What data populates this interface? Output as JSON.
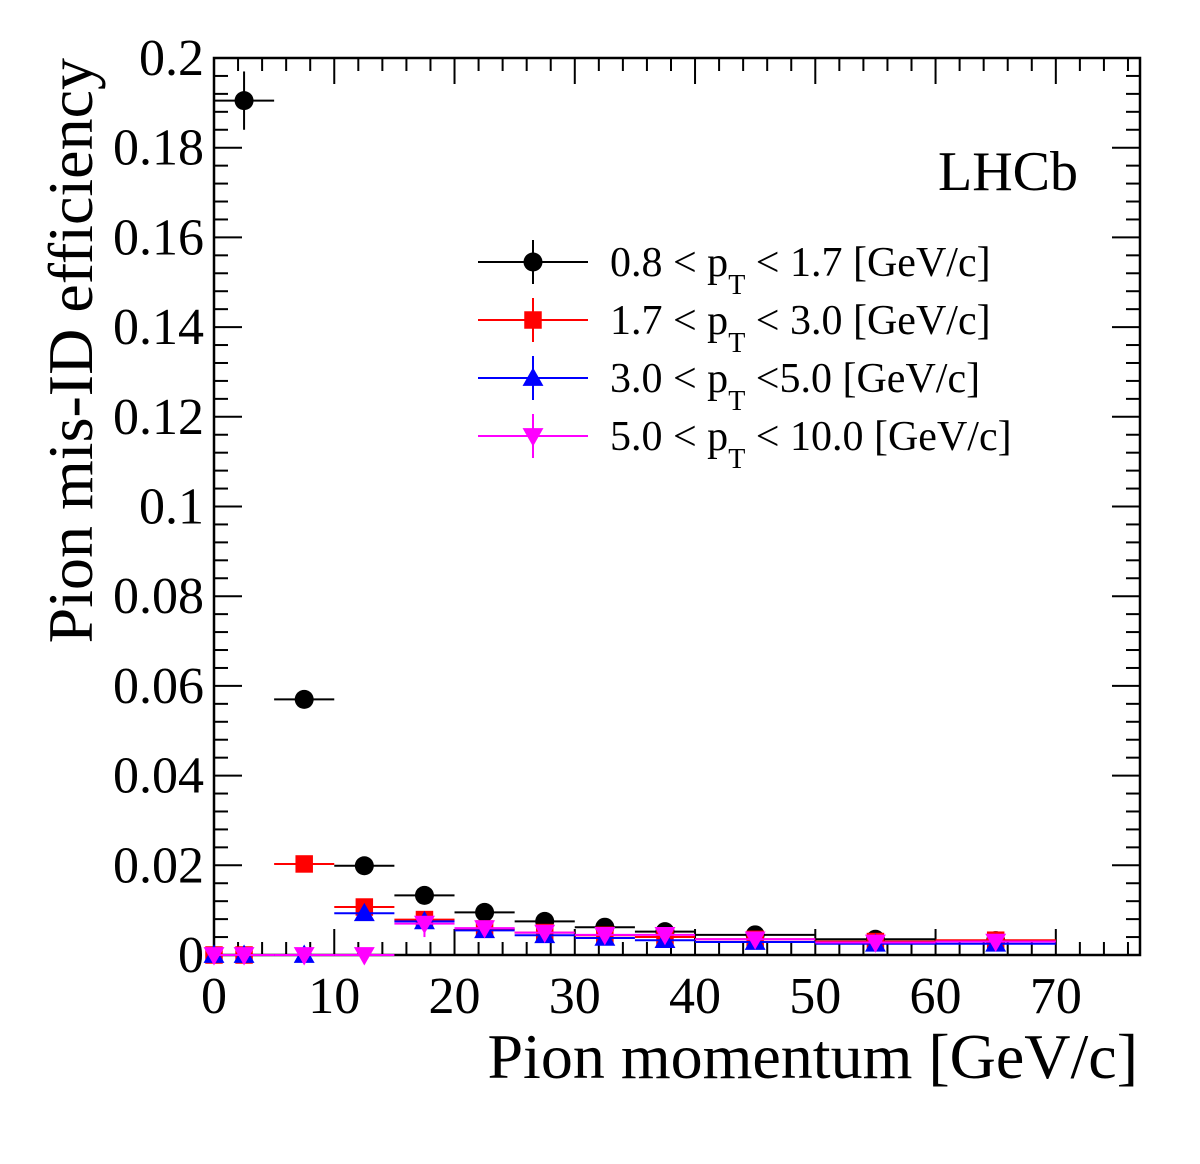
{
  "chart_data": {
    "type": "scatter",
    "xlabel": "Pion momentum [GeV/c]",
    "ylabel": "Pion mis-ID efficiency",
    "xlim": [
      0,
      77
    ],
    "ylim": [
      0,
      0.2
    ],
    "x_ticks": [
      0,
      10,
      20,
      30,
      40,
      50,
      60,
      70
    ],
    "x_tick_labels": [
      "0",
      "10",
      "20",
      "30",
      "40",
      "50",
      "60",
      "70"
    ],
    "y_ticks": [
      0,
      0.02,
      0.04,
      0.06,
      0.08,
      0.1,
      0.12,
      0.14,
      0.16,
      0.18,
      0.2
    ],
    "y_tick_labels": [
      "0",
      "0.02",
      "0.04",
      "0.06",
      "0.08",
      "0.1",
      "0.12",
      "0.14",
      "0.16",
      "0.18",
      "0.2"
    ],
    "annotation": "LHCb",
    "legend_position": "top-right",
    "series": [
      {
        "name": "0.8 < pT < 1.7 [GeV/c]",
        "legend_main": "0.8 < p",
        "legend_sub": "T",
        "legend_tail": " < 1.7 [GeV/c]",
        "color": "#000000",
        "marker": "circle",
        "points": [
          {
            "x": 2.5,
            "xlo": 0,
            "xhi": 5,
            "y": 0.1905,
            "ylo": 0.184,
            "yhi": 0.197
          },
          {
            "x": 7.5,
            "xlo": 5,
            "xhi": 10,
            "y": 0.057,
            "ylo": 0.0565,
            "yhi": 0.0575
          },
          {
            "x": 12.5,
            "xlo": 10,
            "xhi": 15,
            "y": 0.0199,
            "ylo": 0.0195,
            "yhi": 0.0203
          },
          {
            "x": 17.5,
            "xlo": 15,
            "xhi": 20,
            "y": 0.0133,
            "ylo": 0.0129,
            "yhi": 0.0137
          },
          {
            "x": 22.5,
            "xlo": 20,
            "xhi": 25,
            "y": 0.0095,
            "ylo": 0.0091,
            "yhi": 0.0099
          },
          {
            "x": 27.5,
            "xlo": 25,
            "xhi": 30,
            "y": 0.0075,
            "ylo": 0.0071,
            "yhi": 0.0079
          },
          {
            "x": 32.5,
            "xlo": 30,
            "xhi": 35,
            "y": 0.0062,
            "ylo": 0.0058,
            "yhi": 0.0066
          },
          {
            "x": 37.5,
            "xlo": 35,
            "xhi": 40,
            "y": 0.0052,
            "ylo": 0.0048,
            "yhi": 0.0056
          },
          {
            "x": 45,
            "xlo": 40,
            "xhi": 50,
            "y": 0.0045,
            "ylo": 0.0041,
            "yhi": 0.0049
          },
          {
            "x": 55,
            "xlo": 50,
            "xhi": 60,
            "y": 0.0035,
            "ylo": 0.0031,
            "yhi": 0.0039
          },
          {
            "x": 65,
            "xlo": 60,
            "xhi": 70,
            "y": 0.0032,
            "ylo": 0.0028,
            "yhi": 0.0036
          }
        ]
      },
      {
        "name": "1.7 < pT < 3.0 [GeV/c]",
        "legend_main": "1.7 < p",
        "legend_sub": "T",
        "legend_tail": " < 3.0 [GeV/c]",
        "color": "#ff0000",
        "marker": "square",
        "points": [
          {
            "x": 0,
            "xlo": 0,
            "xhi": 0,
            "y": 0,
            "ylo": 0,
            "yhi": 0
          },
          {
            "x": 2.5,
            "xlo": 0,
            "xhi": 5,
            "y": 0,
            "ylo": 0,
            "yhi": 0
          },
          {
            "x": 7.5,
            "xlo": 5,
            "xhi": 10,
            "y": 0.0203,
            "ylo": 0.0199,
            "yhi": 0.0207
          },
          {
            "x": 12.5,
            "xlo": 10,
            "xhi": 15,
            "y": 0.0107,
            "ylo": 0.0103,
            "yhi": 0.0111
          },
          {
            "x": 17.5,
            "xlo": 15,
            "xhi": 20,
            "y": 0.0079,
            "ylo": 0.0075,
            "yhi": 0.0083
          },
          {
            "x": 22.5,
            "xlo": 20,
            "xhi": 25,
            "y": 0.0058,
            "ylo": 0.0054,
            "yhi": 0.0062
          },
          {
            "x": 27.5,
            "xlo": 25,
            "xhi": 30,
            "y": 0.005,
            "ylo": 0.0046,
            "yhi": 0.0054
          },
          {
            "x": 32.5,
            "xlo": 30,
            "xhi": 35,
            "y": 0.0044,
            "ylo": 0.004,
            "yhi": 0.0048
          },
          {
            "x": 37.5,
            "xlo": 35,
            "xhi": 40,
            "y": 0.004,
            "ylo": 0.0036,
            "yhi": 0.0044
          },
          {
            "x": 45,
            "xlo": 40,
            "xhi": 50,
            "y": 0.0035,
            "ylo": 0.0031,
            "yhi": 0.0039
          },
          {
            "x": 55,
            "xlo": 50,
            "xhi": 60,
            "y": 0.003,
            "ylo": 0.0026,
            "yhi": 0.0034
          },
          {
            "x": 65,
            "xlo": 60,
            "xhi": 70,
            "y": 0.0033,
            "ylo": 0.0029,
            "yhi": 0.0037
          }
        ]
      },
      {
        "name": "3.0 < pT <5.0 [GeV/c]",
        "legend_main": "3.0 < p",
        "legend_sub": "T",
        "legend_tail": " <5.0 [GeV/c]",
        "color": "#0000ff",
        "marker": "triangle-up",
        "points": [
          {
            "x": 0,
            "xlo": 0,
            "xhi": 0,
            "y": 0,
            "ylo": 0,
            "yhi": 0
          },
          {
            "x": 2.5,
            "xlo": 0,
            "xhi": 5,
            "y": 0,
            "ylo": 0,
            "yhi": 0
          },
          {
            "x": 7.5,
            "xlo": 5,
            "xhi": 10,
            "y": 0,
            "ylo": 0,
            "yhi": 0
          },
          {
            "x": 12.5,
            "xlo": 10,
            "xhi": 15,
            "y": 0.0093,
            "ylo": 0.0087,
            "yhi": 0.0099
          },
          {
            "x": 17.5,
            "xlo": 15,
            "xhi": 20,
            "y": 0.0075,
            "ylo": 0.0071,
            "yhi": 0.0079
          },
          {
            "x": 22.5,
            "xlo": 20,
            "xhi": 25,
            "y": 0.0055,
            "ylo": 0.0051,
            "yhi": 0.0059
          },
          {
            "x": 27.5,
            "xlo": 25,
            "xhi": 30,
            "y": 0.0044,
            "ylo": 0.004,
            "yhi": 0.0048
          },
          {
            "x": 32.5,
            "xlo": 30,
            "xhi": 35,
            "y": 0.0038,
            "ylo": 0.0034,
            "yhi": 0.0042
          },
          {
            "x": 37.5,
            "xlo": 35,
            "xhi": 40,
            "y": 0.0033,
            "ylo": 0.0029,
            "yhi": 0.0037
          },
          {
            "x": 45,
            "xlo": 40,
            "xhi": 50,
            "y": 0.0029,
            "ylo": 0.0025,
            "yhi": 0.0033
          },
          {
            "x": 55,
            "xlo": 50,
            "xhi": 60,
            "y": 0.0025,
            "ylo": 0.0021,
            "yhi": 0.0029
          },
          {
            "x": 65,
            "xlo": 60,
            "xhi": 70,
            "y": 0.0025,
            "ylo": 0.0021,
            "yhi": 0.0029
          }
        ]
      },
      {
        "name": "5.0 < pT < 10.0 [GeV/c]",
        "legend_main": "5.0 < p",
        "legend_sub": "T",
        "legend_tail": " < 10.0 [GeV/c]",
        "color": "#ff00ff",
        "marker": "triangle-down",
        "points": [
          {
            "x": 0,
            "xlo": 0,
            "xhi": 0,
            "y": 0,
            "ylo": 0,
            "yhi": 0
          },
          {
            "x": 2.5,
            "xlo": 0,
            "xhi": 5,
            "y": 0,
            "ylo": 0,
            "yhi": 0
          },
          {
            "x": 7.5,
            "xlo": 5,
            "xhi": 10,
            "y": 0,
            "ylo": 0,
            "yhi": 0
          },
          {
            "x": 12.5,
            "xlo": 10,
            "xhi": 15,
            "y": 0,
            "ylo": 0,
            "yhi": 0
          },
          {
            "x": 17.5,
            "xlo": 15,
            "xhi": 20,
            "y": 0.007,
            "ylo": 0.004,
            "yhi": 0.0085
          },
          {
            "x": 22.5,
            "xlo": 20,
            "xhi": 25,
            "y": 0.006,
            "ylo": 0.005,
            "yhi": 0.007
          },
          {
            "x": 27.5,
            "xlo": 25,
            "xhi": 30,
            "y": 0.005,
            "ylo": 0.0042,
            "yhi": 0.0058
          },
          {
            "x": 32.5,
            "xlo": 30,
            "xhi": 35,
            "y": 0.0045,
            "ylo": 0.0038,
            "yhi": 0.0052
          },
          {
            "x": 37.5,
            "xlo": 35,
            "xhi": 40,
            "y": 0.0045,
            "ylo": 0.0038,
            "yhi": 0.0052
          },
          {
            "x": 45,
            "xlo": 40,
            "xhi": 50,
            "y": 0.0035,
            "ylo": 0.003,
            "yhi": 0.004
          },
          {
            "x": 55,
            "xlo": 50,
            "xhi": 60,
            "y": 0.0028,
            "ylo": 0.0024,
            "yhi": 0.0032
          },
          {
            "x": 65,
            "xlo": 60,
            "xhi": 70,
            "y": 0.003,
            "ylo": 0.0026,
            "yhi": 0.0034
          }
        ]
      }
    ]
  }
}
